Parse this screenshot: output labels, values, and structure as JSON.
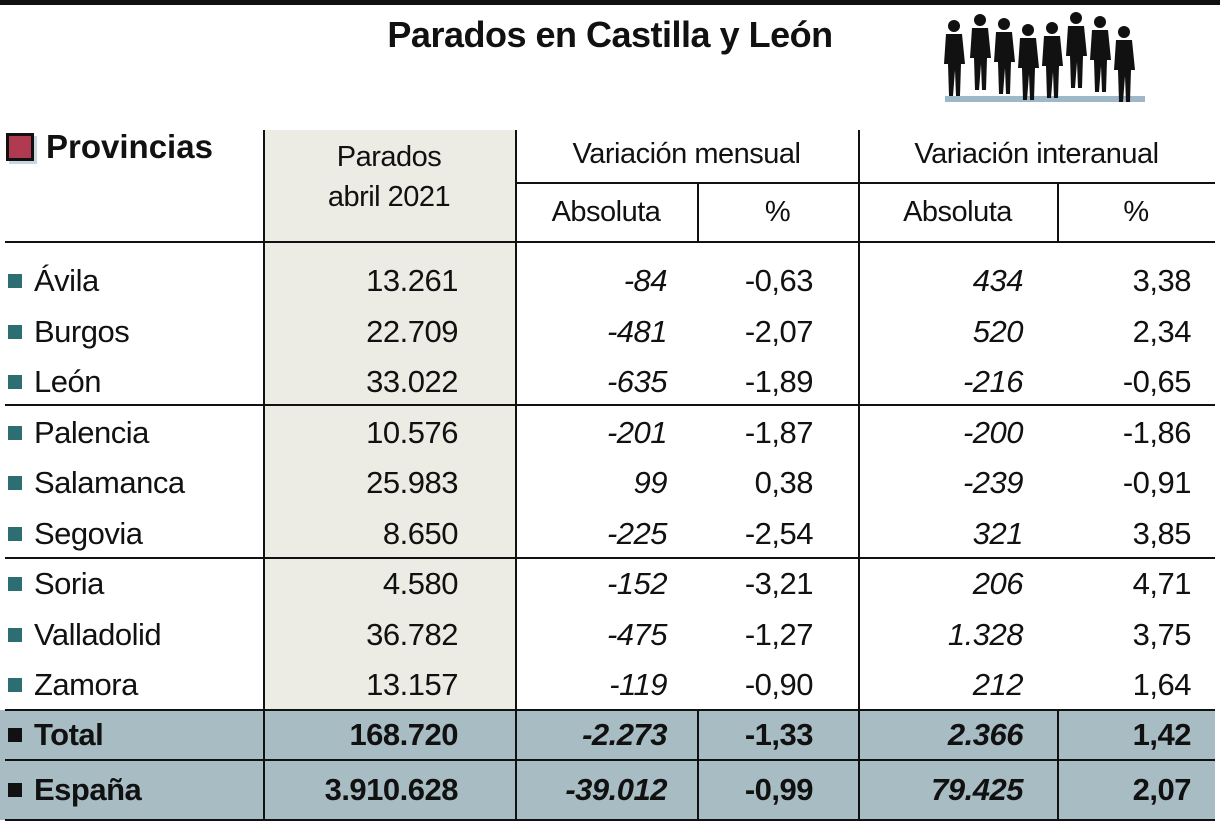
{
  "title": "Parados en Castilla y León",
  "icon": "people-queue-silhouette",
  "colors": {
    "shaded_column": "#ecebe4",
    "total_rows": "#a8bcc3",
    "row_bullet": "#2c6e72",
    "header_bullet": "#b03a50"
  },
  "chart_data": {
    "type": "table",
    "title": "Parados en Castilla y León",
    "headers": {
      "provincias": "Provincias",
      "parados_line1": "Parados",
      "parados_line2": "abril 2021",
      "var_mensual": "Variación mensual",
      "var_interanual": "Variación interanual",
      "absoluta": "Absoluta",
      "pct": "%"
    },
    "rows": [
      {
        "name": "Ávila",
        "parados": "13.261",
        "mens_abs": "-84",
        "mens_pct": "-0,63",
        "inter_abs": "434",
        "inter_pct": "3,38"
      },
      {
        "name": "Burgos",
        "parados": "22.709",
        "mens_abs": "-481",
        "mens_pct": "-2,07",
        "inter_abs": "520",
        "inter_pct": "2,34"
      },
      {
        "name": "León",
        "parados": "33.022",
        "mens_abs": "-635",
        "mens_pct": "-1,89",
        "inter_abs": "-216",
        "inter_pct": "-0,65"
      },
      {
        "name": "Palencia",
        "parados": "10.576",
        "mens_abs": "-201",
        "mens_pct": "-1,87",
        "inter_abs": "-200",
        "inter_pct": "-1,86"
      },
      {
        "name": "Salamanca",
        "parados": "25.983",
        "mens_abs": "99",
        "mens_pct": "0,38",
        "inter_abs": "-239",
        "inter_pct": "-0,91"
      },
      {
        "name": "Segovia",
        "parados": "8.650",
        "mens_abs": "-225",
        "mens_pct": "-2,54",
        "inter_abs": "321",
        "inter_pct": "3,85"
      },
      {
        "name": "Soria",
        "parados": "4.580",
        "mens_abs": "-152",
        "mens_pct": "-3,21",
        "inter_abs": "206",
        "inter_pct": "4,71"
      },
      {
        "name": "Valladolid",
        "parados": "36.782",
        "mens_abs": "-475",
        "mens_pct": "-1,27",
        "inter_abs": "1.328",
        "inter_pct": "3,75"
      },
      {
        "name": "Zamora",
        "parados": "13.157",
        "mens_abs": "-119",
        "mens_pct": "-0,90",
        "inter_abs": "212",
        "inter_pct": "1,64"
      }
    ],
    "totals": [
      {
        "name": "Total",
        "parados": "168.720",
        "mens_abs": "-2.273",
        "mens_pct": "-1,33",
        "inter_abs": "2.366",
        "inter_pct": "1,42"
      },
      {
        "name": "España",
        "parados": "3.910.628",
        "mens_abs": "-39.012",
        "mens_pct": "-0,99",
        "inter_abs": "79.425",
        "inter_pct": "2,07"
      }
    ]
  }
}
